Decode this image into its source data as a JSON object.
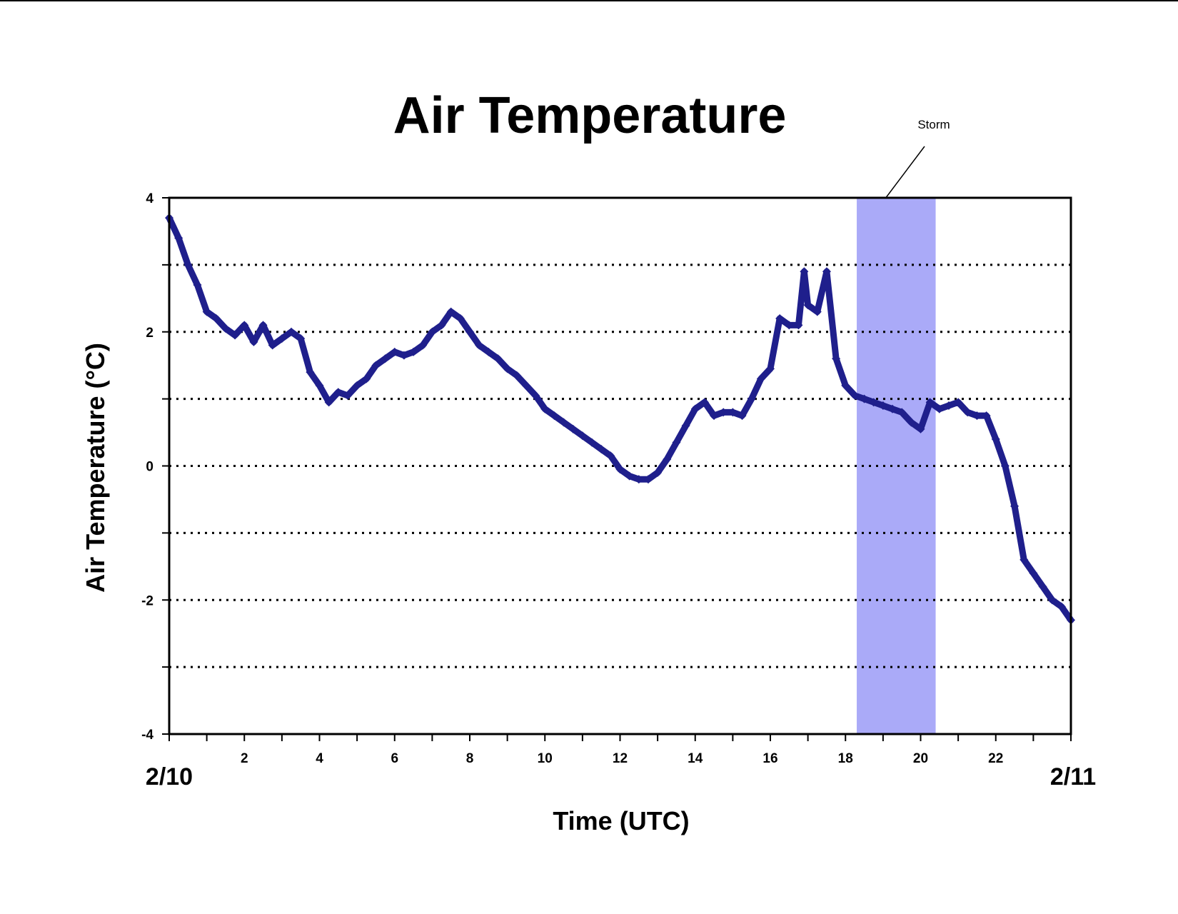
{
  "chart_data": {
    "type": "scatter",
    "title": "Air Temperature",
    "xlabel": "Time (UTC)",
    "ylabel": "Air Temperature (°C)",
    "xlim": [
      0,
      24
    ],
    "ylim": [
      -4,
      4
    ],
    "x_ticks": [
      {
        "value": 2,
        "label": "2"
      },
      {
        "value": 4,
        "label": "4"
      },
      {
        "value": 6,
        "label": "6"
      },
      {
        "value": 8,
        "label": "8"
      },
      {
        "value": 10,
        "label": "10"
      },
      {
        "value": 12,
        "label": "12"
      },
      {
        "value": 14,
        "label": "14"
      },
      {
        "value": 16,
        "label": "16"
      },
      {
        "value": 18,
        "label": "18"
      },
      {
        "value": 20,
        "label": "20"
      },
      {
        "value": 22,
        "label": "22"
      }
    ],
    "y_ticks": [
      {
        "value": 4,
        "label": "4"
      },
      {
        "value": 2,
        "label": "2"
      },
      {
        "value": 0,
        "label": "0"
      },
      {
        "value": -2,
        "label": "-2"
      },
      {
        "value": -4,
        "label": "-4"
      }
    ],
    "gridlines_y": [
      3,
      2,
      1,
      0,
      -1,
      -2,
      -3
    ],
    "grid": "horizontal dotted",
    "date_labels": {
      "start": "2/10",
      "end": "2/11"
    },
    "annotation": {
      "text": "Storm",
      "x_start": 18.3,
      "x_end": 20.4,
      "color": "#aaaaf8"
    },
    "marker_color": "#1f1f8c",
    "series": [
      {
        "x": [
          0.0,
          0.25,
          0.5,
          0.75,
          1.0,
          1.25,
          1.5,
          1.75,
          2.0,
          2.25,
          2.5,
          2.75,
          3.0,
          3.25,
          3.5,
          3.75,
          4.0,
          4.25,
          4.5,
          4.75,
          5.0,
          5.25,
          5.5,
          5.75,
          6.0,
          6.25,
          6.5,
          6.75,
          7.0,
          7.25,
          7.5,
          7.75,
          8.0,
          8.25,
          8.5,
          8.75,
          9.0,
          9.25,
          9.5,
          9.75,
          10.0,
          10.25,
          10.5,
          10.75,
          11.0,
          11.25,
          11.5,
          11.75,
          12.0,
          12.25,
          12.5,
          12.75,
          13.0,
          13.25,
          13.5,
          13.75,
          14.0,
          14.25,
          14.5,
          14.75,
          15.0,
          15.25,
          15.5,
          15.75,
          16.0,
          16.25,
          16.5,
          16.75,
          16.9,
          17.0,
          17.25,
          17.5,
          17.75,
          18.0,
          18.25,
          18.5,
          18.75,
          19.0,
          19.25,
          19.5,
          19.75,
          20.0,
          20.25,
          20.5,
          20.75,
          21.0,
          21.25,
          21.5,
          21.75,
          22.0,
          22.25,
          22.5,
          22.75,
          23.0,
          23.25,
          23.5,
          23.75,
          24.0
        ],
        "y": [
          3.7,
          3.4,
          3.0,
          2.7,
          2.3,
          2.2,
          2.05,
          1.95,
          2.1,
          1.85,
          2.1,
          1.8,
          1.9,
          2.0,
          1.9,
          1.4,
          1.2,
          0.95,
          1.1,
          1.05,
          1.2,
          1.3,
          1.5,
          1.6,
          1.7,
          1.65,
          1.7,
          1.8,
          2.0,
          2.1,
          2.3,
          2.2,
          2.0,
          1.8,
          1.7,
          1.6,
          1.45,
          1.35,
          1.2,
          1.05,
          0.85,
          0.75,
          0.65,
          0.55,
          0.45,
          0.35,
          0.25,
          0.15,
          -0.05,
          -0.15,
          -0.2,
          -0.2,
          -0.1,
          0.1,
          0.35,
          0.6,
          0.85,
          0.95,
          0.75,
          0.8,
          0.8,
          0.75,
          1.0,
          1.3,
          1.45,
          2.2,
          2.1,
          2.1,
          2.9,
          2.4,
          2.3,
          2.9,
          1.6,
          1.2,
          1.05,
          1.0,
          0.95,
          0.9,
          0.85,
          0.8,
          0.65,
          0.55,
          0.95,
          0.85,
          0.9,
          0.95,
          0.8,
          0.75,
          0.75,
          0.4,
          0.0,
          -0.6,
          -1.4,
          -1.6,
          -1.8,
          -2.0,
          -2.1,
          -2.3
        ]
      }
    ]
  }
}
